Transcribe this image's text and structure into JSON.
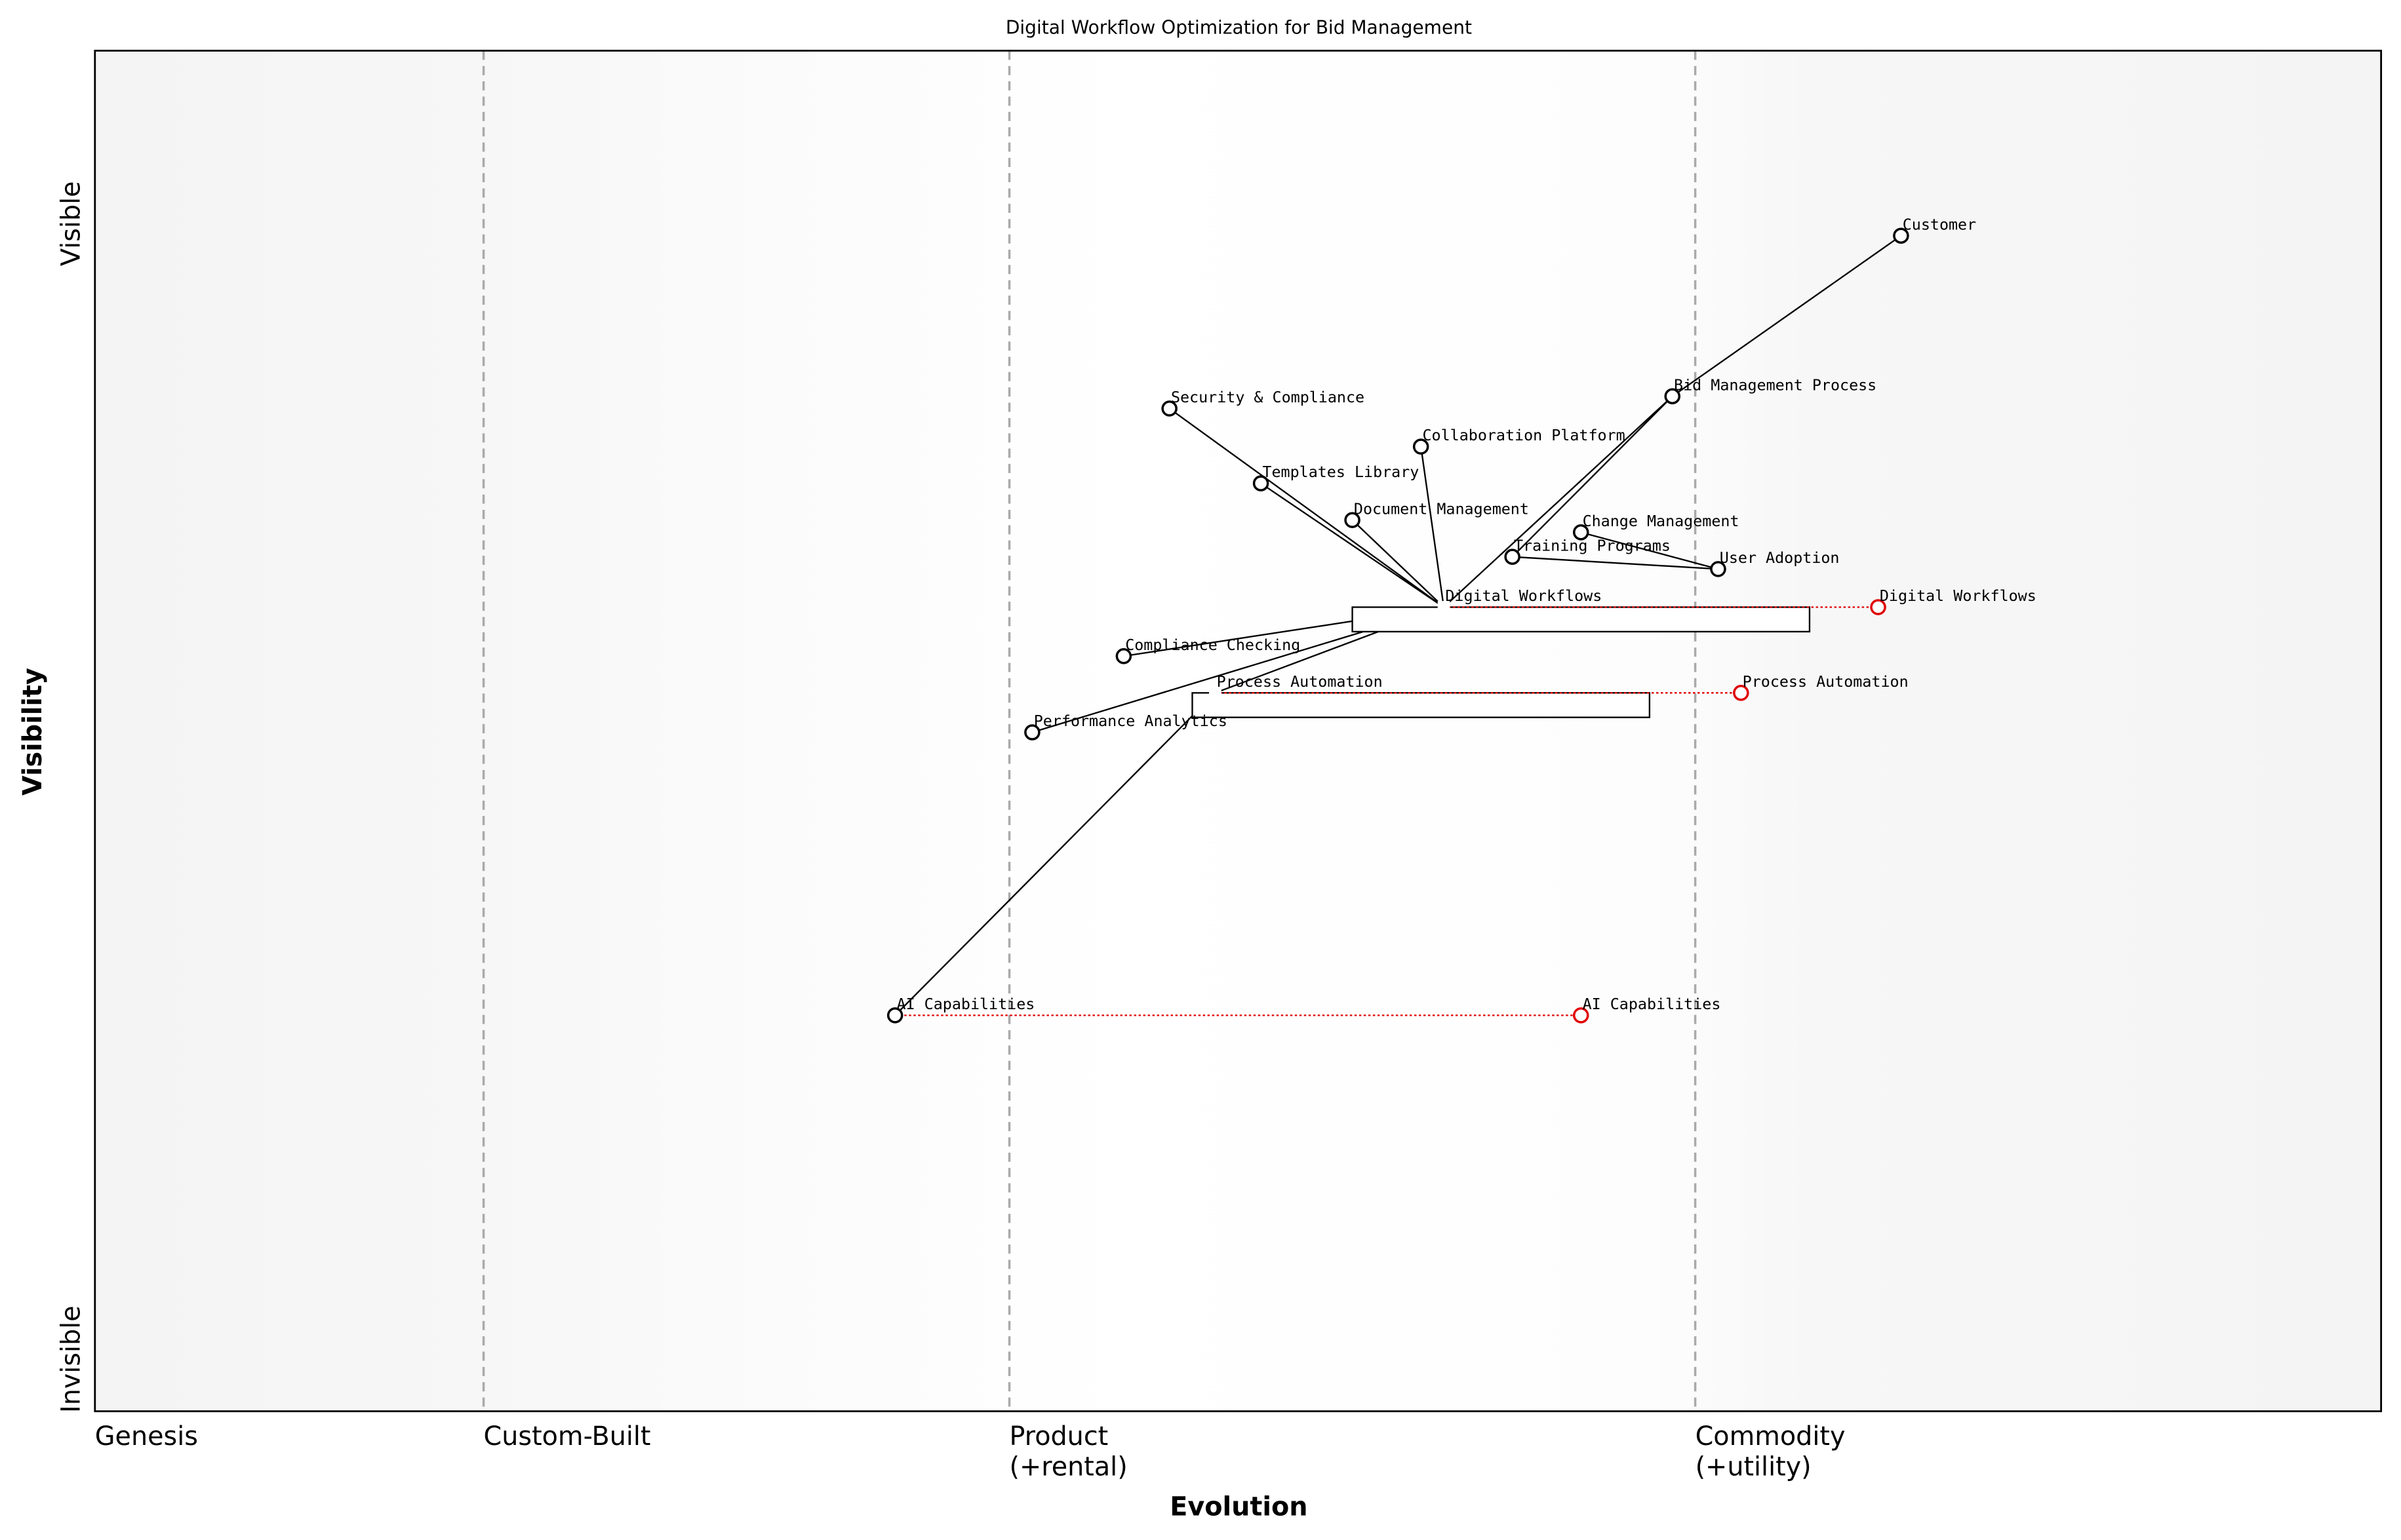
{
  "title": "Digital Workflow Optimization for Bid Management",
  "x_axis": {
    "label": "Evolution",
    "range": [
      0,
      1
    ]
  },
  "y_axis": {
    "label": "Visibility",
    "range": [
      0,
      1
    ],
    "top_label": "Visible",
    "bottom_label": "Invisible"
  },
  "stages": [
    {
      "label": "Genesis",
      "position": 0.0
    },
    {
      "label": "Custom-Built",
      "position": 0.17
    },
    {
      "label": "Product\n(+rental)",
      "position": 0.4
    },
    {
      "label": "Commodity\n(+utility)",
      "position": 0.7
    }
  ],
  "stage_lines": [
    0.17,
    0.4,
    0.7
  ],
  "components": [
    {
      "name": "Customer",
      "evolution": 0.79,
      "visibility": 0.864
    },
    {
      "name": "Bid Management Process",
      "evolution": 0.69,
      "visibility": 0.746
    },
    {
      "name": "Security & Compliance",
      "evolution": 0.47,
      "visibility": 0.737
    },
    {
      "name": "Collaboration Platform",
      "evolution": 0.58,
      "visibility": 0.709
    },
    {
      "name": "Templates Library",
      "evolution": 0.51,
      "visibility": 0.682
    },
    {
      "name": "Document Management",
      "evolution": 0.55,
      "visibility": 0.655
    },
    {
      "name": "Change Management",
      "evolution": 0.65,
      "visibility": 0.646
    },
    {
      "name": "Training Programs",
      "evolution": 0.62,
      "visibility": 0.628
    },
    {
      "name": "User Adoption",
      "evolution": 0.71,
      "visibility": 0.619
    },
    {
      "name": "Digital Workflows",
      "evolution": 0.59,
      "visibility": 0.591,
      "hidden_marker": true
    },
    {
      "name": "Compliance Checking",
      "evolution": 0.45,
      "visibility": 0.555
    },
    {
      "name": "Process Automation",
      "evolution": 0.49,
      "visibility": 0.528,
      "hidden_marker": true
    },
    {
      "name": "Performance Analytics",
      "evolution": 0.41,
      "visibility": 0.499
    },
    {
      "name": "AI Capabilities",
      "evolution": 0.35,
      "visibility": 0.291
    }
  ],
  "links": [
    [
      "Customer",
      "Bid Management Process"
    ],
    [
      "Bid Management Process",
      "Digital Workflows"
    ],
    [
      "Bid Management Process",
      "Training Programs"
    ],
    [
      "Security & Compliance",
      "Digital Workflows"
    ],
    [
      "Templates Library",
      "Digital Workflows"
    ],
    [
      "Collaboration Platform",
      "Digital Workflows"
    ],
    [
      "Document Management",
      "Digital Workflows"
    ],
    [
      "Change Management",
      "User Adoption"
    ],
    [
      "Training Programs",
      "User Adoption"
    ],
    [
      "Digital Workflows",
      "Compliance Checking"
    ],
    [
      "Digital Workflows",
      "Performance Analytics"
    ],
    [
      "Digital Workflows",
      "Process Automation"
    ],
    [
      "Process Automation",
      "AI Capabilities"
    ]
  ],
  "evolutions": [
    {
      "name": "Digital Workflows",
      "from": 0.59,
      "to": 0.78,
      "visibility": 0.591,
      "inertia": [
        0.55,
        0.75
      ]
    },
    {
      "name": "Process Automation",
      "from": 0.49,
      "to": 0.72,
      "visibility": 0.528,
      "inertia": [
        0.48,
        0.68
      ]
    },
    {
      "name": "AI Capabilities",
      "from": 0.35,
      "to": 0.65,
      "visibility": 0.291
    }
  ],
  "colors": {
    "component": "#000000",
    "evolved": "#e00000",
    "stage_line": "#aaaaaa",
    "band_edge": "#f5f5f5",
    "band_mid": "#ffffff"
  }
}
